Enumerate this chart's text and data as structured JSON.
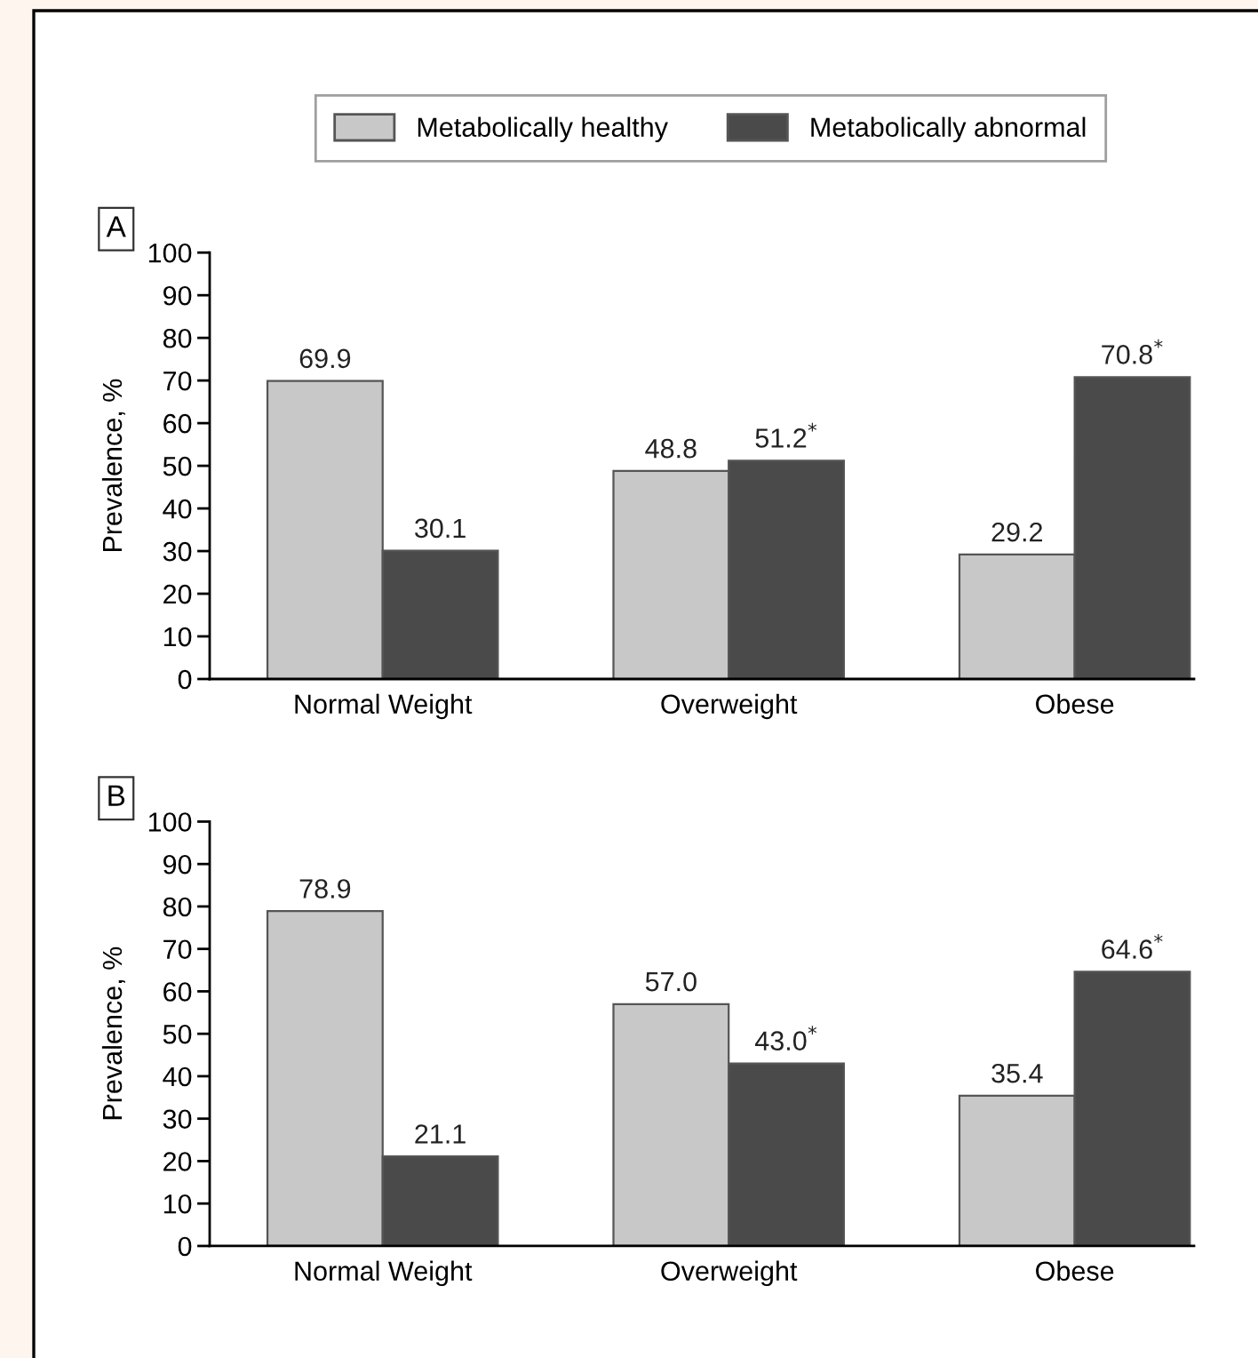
{
  "chart_data": [
    {
      "type": "bar",
      "title": "A",
      "ylabel": "Prevalence, %",
      "categories": [
        "Normal Weight",
        "Overweight",
        "Obese"
      ],
      "ylim": [
        0,
        100
      ],
      "yticks": [
        0,
        10,
        20,
        30,
        40,
        50,
        60,
        70,
        80,
        90,
        100
      ],
      "grid": false,
      "legend": "top",
      "series": [
        {
          "name": "Metabolically healthy",
          "color": "#c8c8c8",
          "values": [
            69.9,
            48.8,
            29.2
          ],
          "value_labels": [
            "69.9",
            "48.8",
            "29.2"
          ]
        },
        {
          "name": "Metabolically abnormal",
          "color": "#4a4a4a",
          "values": [
            30.1,
            51.2,
            70.8
          ],
          "value_labels": [
            "30.1",
            "51.2$^{*}$",
            "70.8$^{*}$"
          ]
        }
      ]
    },
    {
      "type": "bar",
      "title": "B",
      "ylabel": "Prevalence, %",
      "categories": [
        "Normal Weight",
        "Overweight",
        "Obese"
      ],
      "ylim": [
        0,
        100
      ],
      "yticks": [
        0,
        10,
        20,
        30,
        40,
        50,
        60,
        70,
        80,
        90,
        100
      ],
      "grid": false,
      "series": [
        {
          "color": "#c8c8c8",
          "values": [
            78.9,
            57.0,
            35.4
          ],
          "value_labels": [
            "78.9",
            "57.0",
            "35.4"
          ]
        },
        {
          "color": "#4a4a4a",
          "values": [
            21.1,
            43.0,
            64.6
          ],
          "value_labels": [
            "21.1",
            "43.0$^{*}$",
            "64.6$^{*}$"
          ]
        }
      ]
    }
  ]
}
